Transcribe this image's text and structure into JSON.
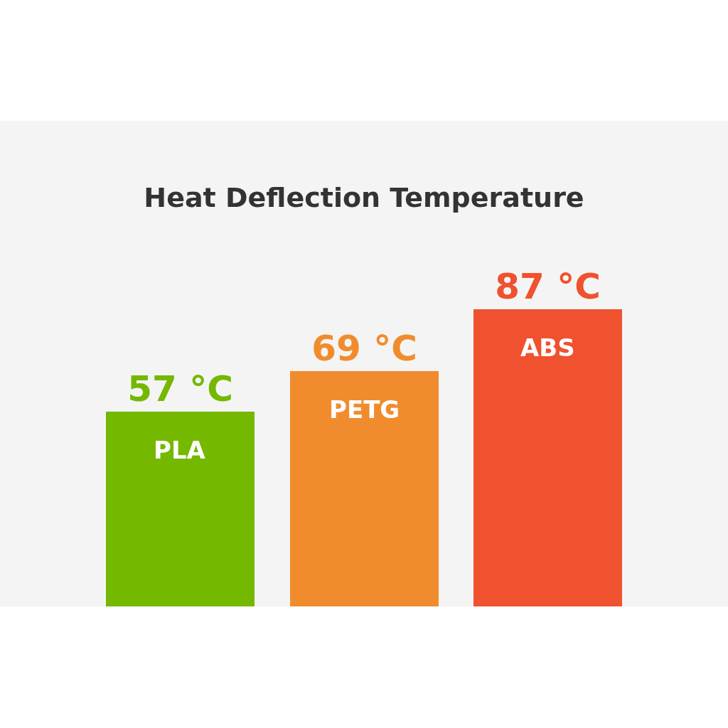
{
  "chart_data": {
    "type": "bar",
    "title": "Heat Deflection Temperature",
    "categories": [
      "PLA",
      "PETG",
      "ABS"
    ],
    "values": [
      57,
      69,
      87
    ],
    "colors": [
      "#74b800",
      "#f18c2e",
      "#f0512e"
    ],
    "value_labels": [
      "57 °C",
      "69 °C",
      "87 °C"
    ],
    "grid": false,
    "legend": false
  }
}
